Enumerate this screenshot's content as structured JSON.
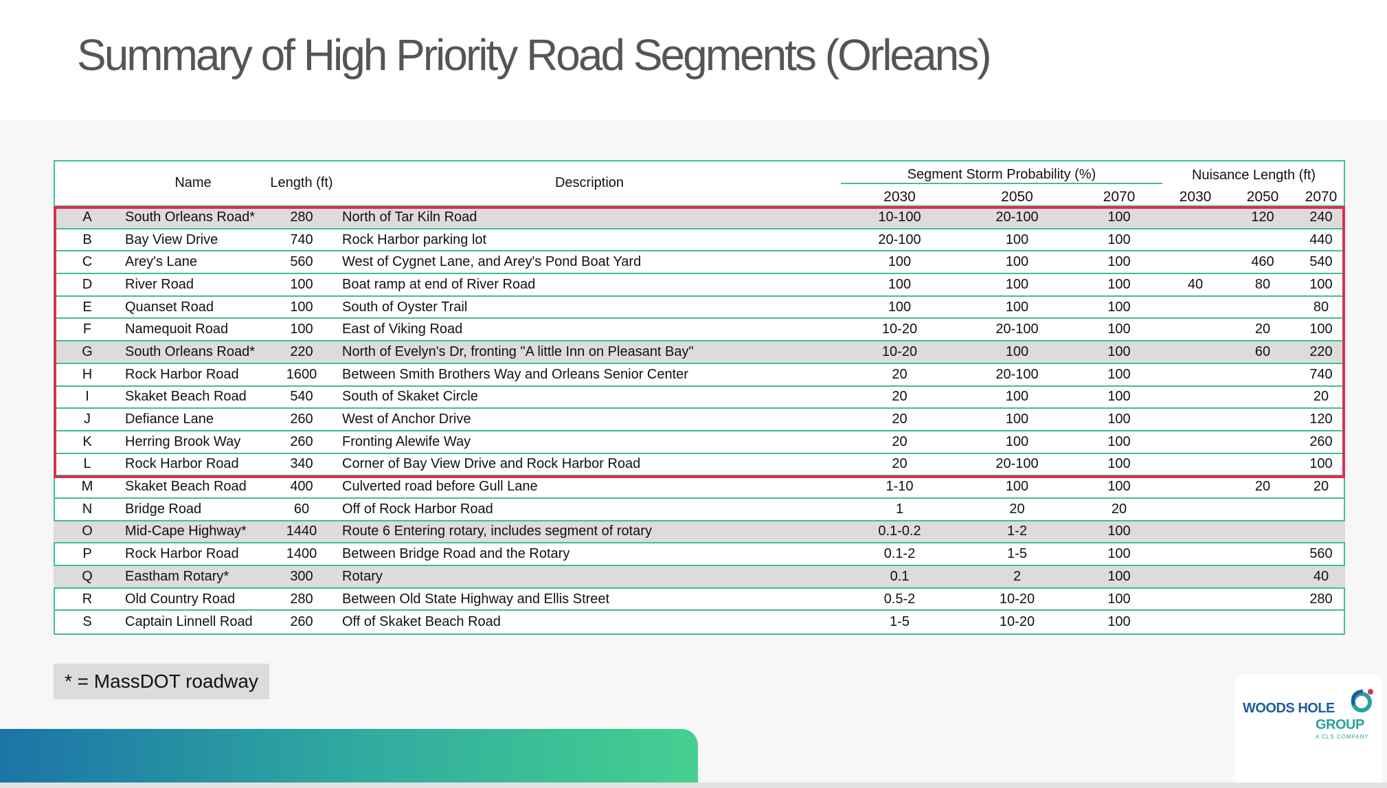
{
  "title": "Summary of High Priority Road Segments (Orleans)",
  "table": {
    "headers": {
      "name": "Name",
      "length": "Length (ft)",
      "description": "Description",
      "storm_group": "Segment Storm Probability (%)",
      "nuisance_group": "Nuisance Length (ft)",
      "years": [
        "2030",
        "2050",
        "2070",
        "2030",
        "2050",
        "2070"
      ]
    },
    "rows": [
      {
        "id": "A",
        "name": "South Orleans Road*",
        "length": "280",
        "desc": "North of Tar Kiln Road",
        "s2030": "10-100",
        "s2050": "20-100",
        "s2070": "100",
        "n2030": "",
        "n2050": "120",
        "n2070": "240",
        "shaded": true
      },
      {
        "id": "B",
        "name": "Bay View Drive",
        "length": "740",
        "desc": "Rock Harbor parking lot",
        "s2030": "20-100",
        "s2050": "100",
        "s2070": "100",
        "n2030": "",
        "n2050": "",
        "n2070": "440",
        "shaded": false
      },
      {
        "id": "C",
        "name": "Arey's Lane",
        "length": "560",
        "desc": "West of Cygnet Lane, and Arey's Pond Boat Yard",
        "s2030": "100",
        "s2050": "100",
        "s2070": "100",
        "n2030": "",
        "n2050": "460",
        "n2070": "540",
        "shaded": false
      },
      {
        "id": "D",
        "name": "River Road",
        "length": "100",
        "desc": "Boat ramp at end of River Road",
        "s2030": "100",
        "s2050": "100",
        "s2070": "100",
        "n2030": "40",
        "n2050": "80",
        "n2070": "100",
        "shaded": false
      },
      {
        "id": "E",
        "name": "Quanset Road",
        "length": "100",
        "desc": "South of Oyster Trail",
        "s2030": "100",
        "s2050": "100",
        "s2070": "100",
        "n2030": "",
        "n2050": "",
        "n2070": "80",
        "shaded": false
      },
      {
        "id": "F",
        "name": "Namequoit Road",
        "length": "100",
        "desc": "East of Viking Road",
        "s2030": "10-20",
        "s2050": "20-100",
        "s2070": "100",
        "n2030": "",
        "n2050": "20",
        "n2070": "100",
        "shaded": false
      },
      {
        "id": "G",
        "name": "South Orleans Road*",
        "length": "220",
        "desc": "North of Evelyn's Dr, fronting \"A little Inn on Pleasant Bay\"",
        "s2030": "10-20",
        "s2050": "100",
        "s2070": "100",
        "n2030": "",
        "n2050": "60",
        "n2070": "220",
        "shaded": true
      },
      {
        "id": "H",
        "name": "Rock Harbor Road",
        "length": "1600",
        "desc": "Between Smith Brothers Way and Orleans Senior Center",
        "s2030": "20",
        "s2050": "20-100",
        "s2070": "100",
        "n2030": "",
        "n2050": "",
        "n2070": "740",
        "shaded": false
      },
      {
        "id": "I",
        "name": "Skaket Beach Road",
        "length": "540",
        "desc": "South of Skaket Circle",
        "s2030": "20",
        "s2050": "100",
        "s2070": "100",
        "n2030": "",
        "n2050": "",
        "n2070": "20",
        "shaded": false
      },
      {
        "id": "J",
        "name": "Defiance Lane",
        "length": "260",
        "desc": "West of Anchor Drive",
        "s2030": "20",
        "s2050": "100",
        "s2070": "100",
        "n2030": "",
        "n2050": "",
        "n2070": "120",
        "shaded": false
      },
      {
        "id": "K",
        "name": "Herring Brook Way",
        "length": "260",
        "desc": "Fronting Alewife Way",
        "s2030": "20",
        "s2050": "100",
        "s2070": "100",
        "n2030": "",
        "n2050": "",
        "n2070": "260",
        "shaded": false
      },
      {
        "id": "L",
        "name": "Rock Harbor Road",
        "length": "340",
        "desc": "Corner of Bay View Drive and Rock Harbor Road",
        "s2030": "20",
        "s2050": "20-100",
        "s2070": "100",
        "n2030": "",
        "n2050": "",
        "n2070": "100",
        "shaded": false
      },
      {
        "id": "M",
        "name": "Skaket Beach Road",
        "length": "400",
        "desc": "Culverted road before Gull Lane",
        "s2030": "1-10",
        "s2050": "100",
        "s2070": "100",
        "n2030": "",
        "n2050": "20",
        "n2070": "20",
        "shaded": false
      },
      {
        "id": "N",
        "name": "Bridge Road",
        "length": "60",
        "desc": "Off of Rock Harbor Road",
        "s2030": "1",
        "s2050": "20",
        "s2070": "20",
        "n2030": "",
        "n2050": "",
        "n2070": "",
        "shaded": false
      },
      {
        "id": "O",
        "name": "Mid-Cape Highway*",
        "length": "1440",
        "desc": "Route 6 Entering rotary, includes segment of rotary",
        "s2030": "0.1-0.2",
        "s2050": "1-2",
        "s2070": "100",
        "n2030": "",
        "n2050": "",
        "n2070": "",
        "shaded": true
      },
      {
        "id": "P",
        "name": "Rock Harbor Road",
        "length": "1400",
        "desc": "Between Bridge Road and the Rotary",
        "s2030": "0.1-2",
        "s2050": "1-5",
        "s2070": "100",
        "n2030": "",
        "n2050": "",
        "n2070": "560",
        "shaded": false
      },
      {
        "id": "Q",
        "name": "Eastham Rotary*",
        "length": "300",
        "desc": "Rotary",
        "s2030": "0.1",
        "s2050": "2",
        "s2070": "100",
        "n2030": "",
        "n2050": "",
        "n2070": "40",
        "shaded": true
      },
      {
        "id": "R",
        "name": "Old Country Road",
        "length": "280",
        "desc": "Between Old State Highway and Ellis Street",
        "s2030": "0.5-2",
        "s2050": "10-20",
        "s2070": "100",
        "n2030": "",
        "n2050": "",
        "n2070": "280",
        "shaded": false
      },
      {
        "id": "S",
        "name": "Captain Linnell Road",
        "length": "260",
        "desc": "Off of Skaket Beach Road",
        "s2030": "1-5",
        "s2050": "10-20",
        "s2070": "100",
        "n2030": "",
        "n2050": "",
        "n2070": "",
        "shaded": false
      }
    ]
  },
  "footnote": "* = MassDOT roadway",
  "logo": {
    "line1": "WOODS HOLE",
    "line2": "GROUP",
    "tagline": "A CLS COMPANY"
  },
  "colors": {
    "table_border": "#3fbf8f",
    "highlight_border": "#d6324f",
    "shaded_row": "#dcdcdc",
    "title": "#555555"
  }
}
